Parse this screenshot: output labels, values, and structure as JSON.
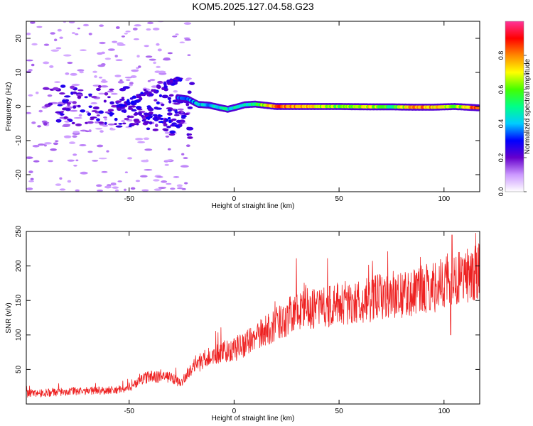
{
  "title": "KOM5.2025.127.04.58.G23",
  "chart_data": [
    {
      "type": "heatmap",
      "xlabel": "Height of straight line (km)",
      "ylabel": "Frequency (Hz)",
      "xlim": [
        -99,
        117
      ],
      "ylim": [
        -25,
        25
      ],
      "xticks": [
        -50,
        0,
        50,
        100
      ],
      "yticks": [
        -20,
        -10,
        0,
        10,
        20
      ],
      "xtick_labels": [
        "-50",
        "0",
        "50",
        "100"
      ],
      "ytick_labels": [
        "-20",
        "-10",
        "0",
        "10",
        "20"
      ],
      "colorbar": {
        "label": "Normalized spectral amplitude",
        "range": [
          0,
          1
        ],
        "ticks": [
          "0.0",
          "0.2",
          "0.4",
          "0.6",
          "0.8"
        ],
        "colormap": [
          "#ffffff",
          "#cc99ff",
          "#6600cc",
          "#0000ff",
          "#00ccff",
          "#00ff88",
          "#44ff00",
          "#ffff00",
          "#ff8800",
          "#ff0000",
          "#ff3399"
        ]
      },
      "ridge": [
        {
          "x": -27,
          "y": 2.6,
          "v": 0.3
        },
        {
          "x": -22,
          "y": 2.2,
          "v": 0.35
        },
        {
          "x": -17,
          "y": 0.6,
          "v": 0.4
        },
        {
          "x": -12,
          "y": 0.4,
          "v": 0.4
        },
        {
          "x": -7,
          "y": -0.3,
          "v": 0.45
        },
        {
          "x": -3,
          "y": -0.8,
          "v": 0.45
        },
        {
          "x": 1,
          "y": -0.2,
          "v": 0.45
        },
        {
          "x": 5,
          "y": 0.5,
          "v": 0.45
        },
        {
          "x": 10,
          "y": 0.7,
          "v": 0.5
        },
        {
          "x": 20,
          "y": 0,
          "v": 0.85
        },
        {
          "x": 35,
          "y": 0,
          "v": 0.75
        },
        {
          "x": 50,
          "y": 0,
          "v": 0.6
        },
        {
          "x": 65,
          "y": -0.1,
          "v": 0.7
        },
        {
          "x": 75,
          "y": -0.1,
          "v": 0.5
        },
        {
          "x": 85,
          "y": -0.2,
          "v": 0.8
        },
        {
          "x": 95,
          "y": -0.2,
          "v": 0.75
        },
        {
          "x": 105,
          "y": 0,
          "v": 0.6
        },
        {
          "x": 117,
          "y": -0.4,
          "v": 0.9
        }
      ]
    },
    {
      "type": "line",
      "xlabel": "Height of straight line (km)",
      "ylabel": "SNR (v/v)",
      "xlim": [
        -99,
        117
      ],
      "ylim": [
        0,
        250
      ],
      "xticks": [
        -50,
        0,
        50,
        100
      ],
      "yticks": [
        50,
        100,
        150,
        200,
        250
      ],
      "xtick_labels": [
        "-50",
        "0",
        "50",
        "100"
      ],
      "ytick_labels": [
        "50",
        "100",
        "150",
        "200",
        "250"
      ],
      "series": [
        {
          "color": "#ee2222",
          "x": [
            -99,
            -80,
            -60,
            -50,
            -45,
            -40,
            -30,
            -25,
            -20,
            -10,
            0,
            10,
            20,
            30,
            40,
            50,
            60,
            70,
            80,
            90,
            100,
            110,
            117
          ],
          "y": [
            15,
            18,
            20,
            22,
            35,
            40,
            38,
            30,
            55,
            70,
            78,
            95,
            115,
            135,
            140,
            145,
            148,
            155,
            160,
            165,
            175,
            185,
            195
          ],
          "spikes": [
            {
              "x": 103.8,
              "y": 245
            },
            {
              "x": 103.2,
              "y": 100
            }
          ]
        }
      ]
    }
  ]
}
